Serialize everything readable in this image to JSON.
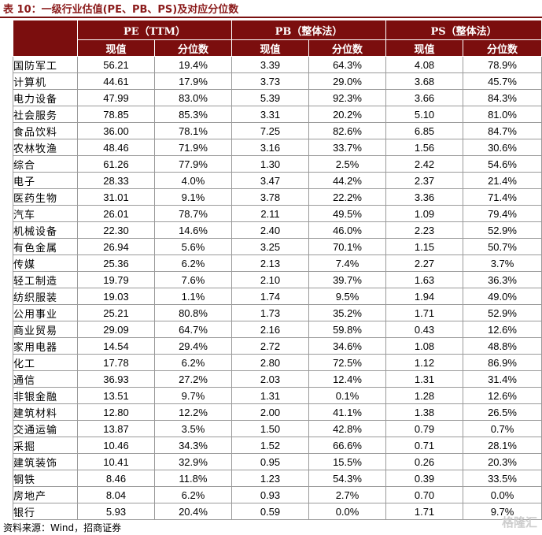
{
  "title": "表 10：一级行业估值(PE、PB、PS)及对应分位数",
  "header": {
    "groups": [
      "PE（TTM）",
      "PB（整体法）",
      "PS（整体法）"
    ],
    "sub": [
      "现值",
      "分位数",
      "现值",
      "分位数",
      "现值",
      "分位数"
    ]
  },
  "rows": [
    [
      "国防军工",
      "56.21",
      "19.4%",
      "3.39",
      "64.3%",
      "4.08",
      "78.9%"
    ],
    [
      "计算机",
      "44.61",
      "17.9%",
      "3.73",
      "29.0%",
      "3.68",
      "45.7%"
    ],
    [
      "电力设备",
      "47.99",
      "83.0%",
      "5.39",
      "92.3%",
      "3.66",
      "84.3%"
    ],
    [
      "社会服务",
      "78.85",
      "85.3%",
      "3.31",
      "20.2%",
      "5.10",
      "81.0%"
    ],
    [
      "食品饮料",
      "36.00",
      "78.1%",
      "7.25",
      "82.6%",
      "6.85",
      "84.7%"
    ],
    [
      "农林牧渔",
      "48.46",
      "71.9%",
      "3.16",
      "33.7%",
      "1.56",
      "30.6%"
    ],
    [
      "综合",
      "61.26",
      "77.9%",
      "1.30",
      "2.5%",
      "2.42",
      "54.6%"
    ],
    [
      "电子",
      "28.33",
      "4.0%",
      "3.47",
      "44.2%",
      "2.37",
      "21.4%"
    ],
    [
      "医药生物",
      "31.01",
      "9.1%",
      "3.78",
      "22.2%",
      "3.36",
      "71.4%"
    ],
    [
      "汽车",
      "26.01",
      "78.7%",
      "2.11",
      "49.5%",
      "1.09",
      "79.4%"
    ],
    [
      "机械设备",
      "22.30",
      "14.6%",
      "2.40",
      "46.0%",
      "2.23",
      "52.9%"
    ],
    [
      "有色金属",
      "26.94",
      "5.6%",
      "3.25",
      "70.1%",
      "1.15",
      "50.7%"
    ],
    [
      "传媒",
      "25.36",
      "6.2%",
      "2.13",
      "7.4%",
      "2.27",
      "3.7%"
    ],
    [
      "轻工制造",
      "19.79",
      "7.6%",
      "2.10",
      "39.7%",
      "1.63",
      "36.3%"
    ],
    [
      "纺织服装",
      "19.03",
      "1.1%",
      "1.74",
      "9.5%",
      "1.94",
      "49.0%"
    ],
    [
      "公用事业",
      "25.21",
      "80.8%",
      "1.73",
      "35.2%",
      "1.71",
      "52.9%"
    ],
    [
      "商业贸易",
      "29.09",
      "64.7%",
      "2.16",
      "59.8%",
      "0.43",
      "12.6%"
    ],
    [
      "家用电器",
      "14.54",
      "29.4%",
      "2.72",
      "34.6%",
      "1.08",
      "48.8%"
    ],
    [
      "化工",
      "17.78",
      "6.2%",
      "2.80",
      "72.5%",
      "1.12",
      "86.9%"
    ],
    [
      "通信",
      "36.93",
      "27.2%",
      "2.03",
      "12.4%",
      "1.31",
      "31.4%"
    ],
    [
      "非银金融",
      "13.51",
      "9.7%",
      "1.31",
      "0.1%",
      "1.28",
      "12.6%"
    ],
    [
      "建筑材料",
      "12.80",
      "12.2%",
      "2.00",
      "41.1%",
      "1.38",
      "26.5%"
    ],
    [
      "交通运输",
      "13.87",
      "3.5%",
      "1.50",
      "42.8%",
      "0.79",
      "0.7%"
    ],
    [
      "采掘",
      "10.46",
      "34.3%",
      "1.52",
      "66.6%",
      "0.71",
      "28.1%"
    ],
    [
      "建筑装饰",
      "10.41",
      "32.9%",
      "0.95",
      "15.5%",
      "0.26",
      "20.3%"
    ],
    [
      "钢铁",
      "8.46",
      "11.8%",
      "1.23",
      "54.3%",
      "0.39",
      "33.5%"
    ],
    [
      "房地产",
      "8.04",
      "6.2%",
      "0.93",
      "2.7%",
      "0.70",
      "0.0%"
    ],
    [
      "银行",
      "5.93",
      "20.4%",
      "0.59",
      "0.0%",
      "1.71",
      "9.7%"
    ]
  ],
  "source": "资料来源：Wind，招商证券",
  "watermark": "格隆汇",
  "colors": {
    "header_bg": "#7b0e0e",
    "title": "#8b1a1a",
    "grid": "#9a9a9a"
  }
}
